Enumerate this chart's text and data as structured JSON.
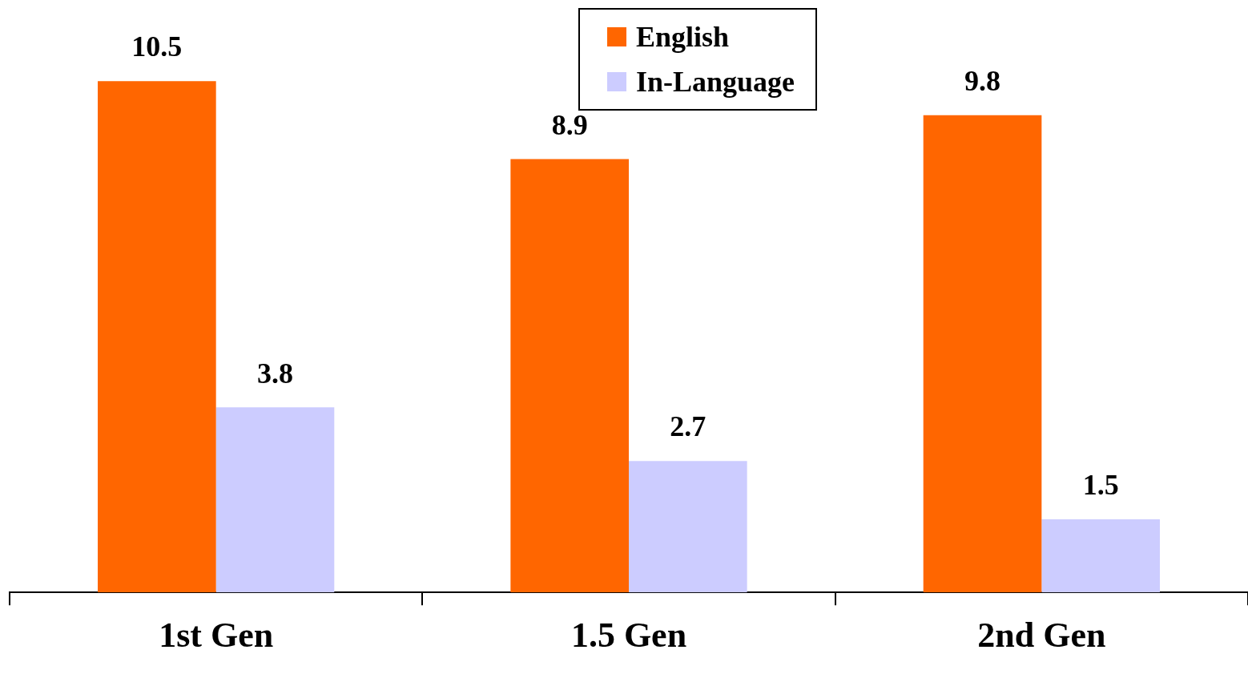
{
  "chart_data": {
    "type": "bar",
    "categories": [
      "1st Gen",
      "1.5 Gen",
      "2nd Gen"
    ],
    "series": [
      {
        "name": "English",
        "color": "#ff6600",
        "values": [
          10.5,
          8.9,
          9.8
        ]
      },
      {
        "name": "In-Language",
        "color": "#ccccff",
        "values": [
          3.8,
          2.7,
          1.5
        ]
      }
    ],
    "data_labels": true,
    "legend": "top"
  }
}
